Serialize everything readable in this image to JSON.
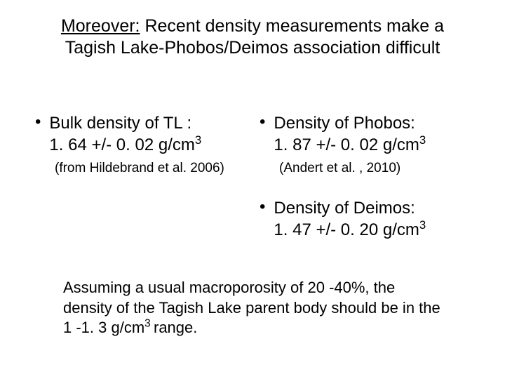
{
  "title": {
    "underlined": "Moreover:",
    "rest": " Recent density measurements make a Tagish Lake-Phobos/Deimos association difficult"
  },
  "left": {
    "bullet1_line1": "Bulk density of TL :",
    "bullet1_line2_pre": "1. 64 +/- 0. 02 g/cm",
    "bullet1_line2_sup": "3",
    "citation": "(from Hildebrand et al. 2006)"
  },
  "right": {
    "bullet1_line1": "Density of Phobos:",
    "bullet1_line2_pre": "1. 87 +/- 0. 02 g/cm",
    "bullet1_line2_sup": "3",
    "citation1": "(Andert et al. , 2010)",
    "bullet2_line1": "Density of Deimos:",
    "bullet2_line2_pre": "1. 47 +/- 0. 20 g/cm",
    "bullet2_line2_sup": "3"
  },
  "footer": {
    "pre": "Assuming a usual macroporosity of 20 -40%, the density of the Tagish Lake parent body should be in the 1 -1. 3 g/cm",
    "sup": "3 ",
    "post": "range."
  },
  "style": {
    "background_color": "#ffffff",
    "text_color": "#000000",
    "title_fontsize": 25,
    "body_fontsize": 24,
    "citation_fontsize": 19,
    "footer_fontsize": 22,
    "font_family": "Arial"
  }
}
